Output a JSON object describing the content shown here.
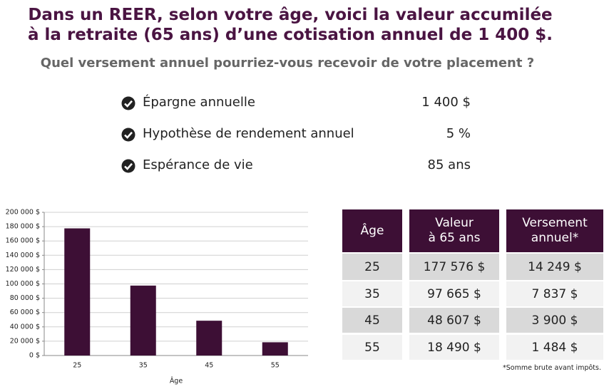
{
  "header": {
    "title_lines": [
      "Dans un REER, selon votre âge, voici la valeur accumilée",
      "à la retraite (65 ans) d’une cotisation annuel de 1 400 $."
    ],
    "subtitle": "Quel versement annuel pourriez-vous recevoir de votre placement ?"
  },
  "assumptions": [
    {
      "label": "Épargne annuelle",
      "value": "1 400 $"
    },
    {
      "label": "Hypothèse de rendement annuel",
      "value": "5 %"
    },
    {
      "label": "Espérance de vie",
      "value": "85 ans"
    }
  ],
  "chart_data": {
    "type": "bar",
    "x_label": "Âge",
    "categories": [
      "25",
      "35",
      "45",
      "55"
    ],
    "values": [
      177576,
      97665,
      48607,
      18490
    ],
    "color": "#3d0f35",
    "grid": true,
    "ylim": [
      0,
      200000
    ],
    "yticks": [
      {
        "value": 0,
        "label": "0 $"
      },
      {
        "value": 20000,
        "label": "20 000 $"
      },
      {
        "value": 40000,
        "label": "40 000 $"
      },
      {
        "value": 60000,
        "label": "60 000 $"
      },
      {
        "value": 80000,
        "label": "80 000 $"
      },
      {
        "value": 100000,
        "label": "100 000 $"
      },
      {
        "value": 120000,
        "label": "120 000 $"
      },
      {
        "value": 140000,
        "label": "140 000 $"
      },
      {
        "value": 160000,
        "label": "160 000 $"
      },
      {
        "value": 180000,
        "label": "180 000 $"
      },
      {
        "value": 200000,
        "label": "200 000 $"
      }
    ]
  },
  "table": {
    "headers": [
      [
        "Âge"
      ],
      [
        "Valeur",
        "à 65 ans"
      ],
      [
        "Versement",
        "annuel*"
      ]
    ],
    "rows": [
      [
        "25",
        "177 576 $",
        "14 249 $"
      ],
      [
        "35",
        "97 665 $",
        "7 837 $"
      ],
      [
        "45",
        "48 607 $",
        "3 900 $"
      ],
      [
        "55",
        "18 490 $",
        "1 484 $"
      ]
    ]
  },
  "footnote": "*Somme brute avant impôts."
}
